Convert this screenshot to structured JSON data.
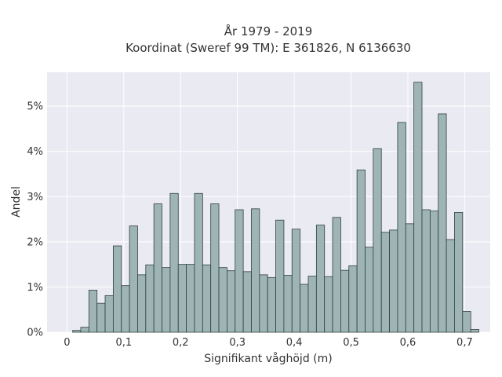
{
  "chart_data": {
    "type": "bar",
    "title_lines": [
      "År 1979 - 2019",
      "Koordinat (Sweref 99 TM): E 361826, N 6136630"
    ],
    "xlabel": "Signifikant våghöjd (m)",
    "ylabel": "Andel",
    "xlim": [
      -0.035,
      0.745
    ],
    "ylim": [
      0,
      0.0575
    ],
    "x_ticks": [
      0,
      0.1,
      0.2,
      0.3,
      0.4,
      0.5,
      0.6,
      0.7
    ],
    "x_tick_labels": [
      "0",
      "0,1",
      "0,2",
      "0,3",
      "0,4",
      "0,5",
      "0,6",
      "0,7"
    ],
    "y_ticks": [
      0,
      0.01,
      0.02,
      0.03,
      0.04,
      0.05
    ],
    "y_tick_labels": [
      "0%",
      "1%",
      "2%",
      "3%",
      "4%",
      "5%"
    ],
    "bin_width": 0.0143,
    "bin_start": 0.01,
    "values": [
      0.0004,
      0.0011,
      0.0093,
      0.0064,
      0.0081,
      0.0191,
      0.0103,
      0.0235,
      0.0127,
      0.0149,
      0.0284,
      0.0143,
      0.0307,
      0.015,
      0.015,
      0.0307,
      0.0149,
      0.0284,
      0.0143,
      0.0136,
      0.0271,
      0.0134,
      0.0273,
      0.0127,
      0.0121,
      0.0248,
      0.0126,
      0.0228,
      0.0106,
      0.0124,
      0.0237,
      0.0123,
      0.0254,
      0.0137,
      0.0147,
      0.0359,
      0.0188,
      0.0406,
      0.0221,
      0.0226,
      0.0464,
      0.024,
      0.0553,
      0.0271,
      0.0268,
      0.0483,
      0.0205,
      0.0265,
      0.0046,
      0.0006
    ],
    "grid": true,
    "background_color": "#eaeaf2",
    "bar_color": "#9fb5b5",
    "bar_edge_color": "#2f3f3f"
  }
}
